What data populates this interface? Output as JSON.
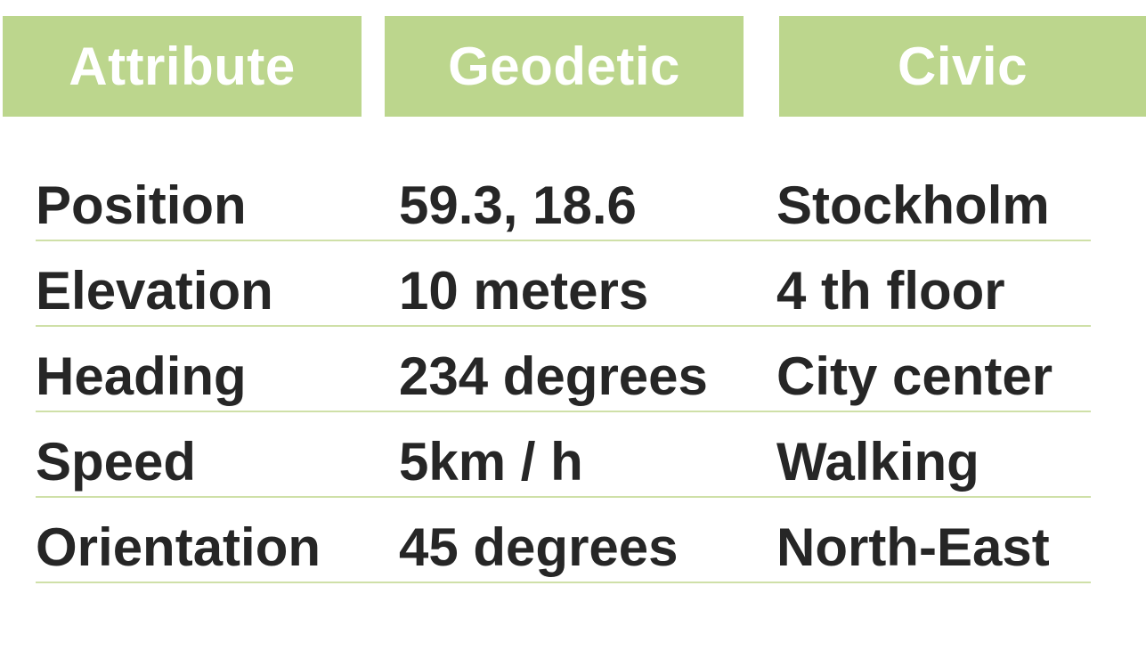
{
  "headers": {
    "attribute": "Attribute",
    "geodetic": "Geodetic",
    "civic": "Civic"
  },
  "rows": [
    {
      "attribute": "Position",
      "geodetic": "59.3, 18.6",
      "civic": "Stockholm"
    },
    {
      "attribute": "Elevation",
      "geodetic": "10 meters",
      "civic": "4 th floor"
    },
    {
      "attribute": "Heading",
      "geodetic": "234 degrees",
      "civic": "City center"
    },
    {
      "attribute": "Speed",
      "geodetic": "5km / h",
      "civic": "Walking"
    },
    {
      "attribute": "Orientation",
      "geodetic": "45 degrees",
      "civic": "North-East"
    }
  ],
  "colors": {
    "header_bg": "#bcd68d",
    "header_text": "#ffffff",
    "row_divider": "#cfe0a8",
    "cell_text": "#262626"
  }
}
